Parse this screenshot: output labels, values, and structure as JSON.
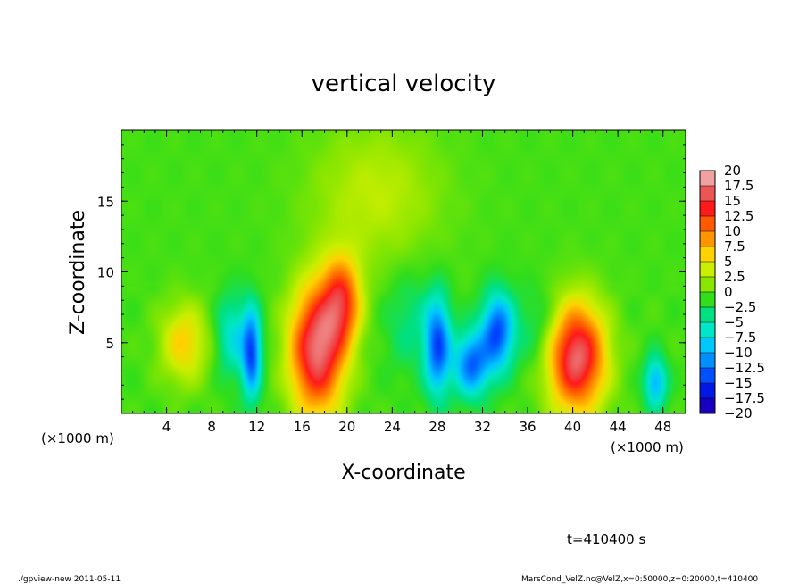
{
  "chart_data": {
    "type": "heatmap",
    "title": "vertical velocity",
    "xlabel": "X-coordinate",
    "ylabel": "Z-coordinate",
    "x_unit_left": "(×1000 m)",
    "x_unit_right": "(×1000 m)",
    "xlim": [
      0,
      50
    ],
    "ylim": [
      0,
      20
    ],
    "x_ticks": [
      4,
      8,
      12,
      16,
      20,
      24,
      28,
      32,
      36,
      40,
      44,
      48
    ],
    "y_ticks": [
      5,
      10,
      15
    ],
    "colorbar": {
      "levels": [
        "20",
        "17.5",
        "15",
        "12.5",
        "10",
        "7.5",
        "5",
        "2.5",
        "0",
        "−2.5",
        "−5",
        "−7.5",
        "−10",
        "−12.5",
        "−15",
        "−17.5",
        "−20"
      ],
      "colors": [
        "#f2a0a0",
        "#ec5555",
        "#ff1a1a",
        "#ff5a00",
        "#ff9600",
        "#ffd200",
        "#ccee00",
        "#88e600",
        "#32dd1a",
        "#00e080",
        "#00e6c8",
        "#00c8ff",
        "#0090ff",
        "#0050ff",
        "#0018e6",
        "#1800bf",
        "#6000b8"
      ]
    },
    "background_value": 0.5,
    "features": [
      {
        "x": 5.5,
        "z": 5.0,
        "sx": 1.5,
        "sz": 2.0,
        "value": 7
      },
      {
        "x": 11.5,
        "z": 4.3,
        "sx": 0.6,
        "sz": 2.2,
        "value": -13
      },
      {
        "x": 9.8,
        "z": 5.5,
        "sx": 1.0,
        "sz": 2.0,
        "value": -6
      },
      {
        "x": 17.3,
        "z": 4.5,
        "sx": 1.7,
        "sz": 3.2,
        "value": 18
      },
      {
        "x": 19.5,
        "z": 8.0,
        "sx": 1.2,
        "sz": 2.2,
        "value": 12
      },
      {
        "x": 22.5,
        "z": 15.5,
        "sx": 4.0,
        "sz": 3.5,
        "value": 4
      },
      {
        "x": 28.0,
        "z": 4.8,
        "sx": 0.8,
        "sz": 2.4,
        "value": -13
      },
      {
        "x": 31.0,
        "z": 3.5,
        "sx": 1.1,
        "sz": 1.6,
        "value": -12
      },
      {
        "x": 33.3,
        "z": 5.8,
        "sx": 1.0,
        "sz": 1.9,
        "value": -13
      },
      {
        "x": 40.3,
        "z": 4.0,
        "sx": 1.8,
        "sz": 2.7,
        "value": 18
      },
      {
        "x": 47.3,
        "z": 2.2,
        "sx": 0.7,
        "sz": 1.3,
        "value": -9
      },
      {
        "x": 37.0,
        "z": 6.0,
        "sx": 1.5,
        "sz": 2.0,
        "value": -3
      },
      {
        "x": 25.5,
        "z": 6.5,
        "sx": 1.5,
        "sz": 2.5,
        "value": -3
      }
    ]
  },
  "time_label": "t=410400 s",
  "footer_left": "./gpview-new  2011-05-11",
  "footer_right": "MarsCond_VelZ.nc@VelZ,x=0:50000,z=0:20000,t=410400"
}
